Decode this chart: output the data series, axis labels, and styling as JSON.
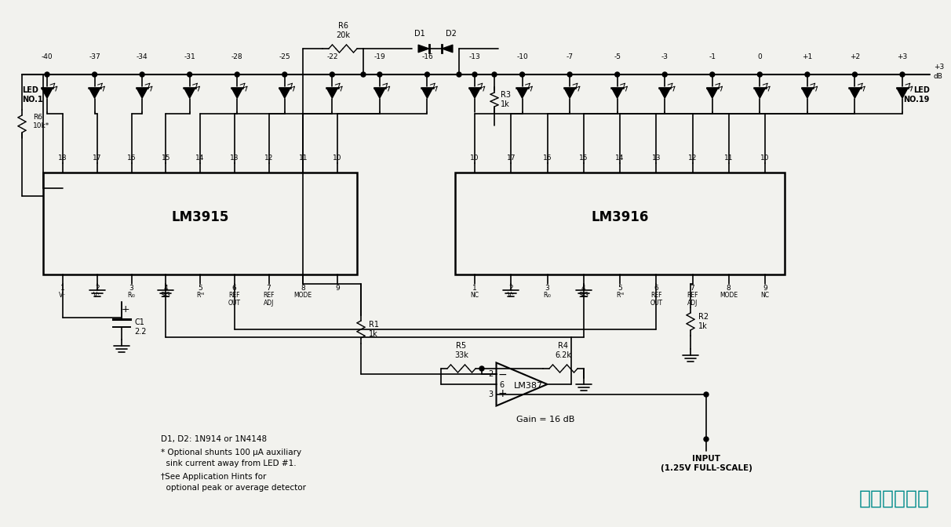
{
  "bg_color": "#f2f2ee",
  "watermark_text": "马上登录易航",
  "watermark_color": "#008B8B",
  "annotation1": "D1, D2: 1N914 or 1N4148",
  "annotation2": "* Optional shunts 100 μA auxiliary",
  "annotation3": "  sink current away from LED #1.",
  "annotation4": "†See Application Hints for",
  "annotation5": "  optional peak or average detector",
  "gain_text": "Gain = 16 dB",
  "input_text": "INPUT",
  "input_text2": "(1.25V FULL-SCALE)",
  "ic1_label": "LM3915",
  "ic2_label": "LM3916",
  "op_amp_label": "LM387",
  "led_labels": [
    "-40",
    "-37",
    "-34",
    "-31",
    "-28",
    "-25",
    "-22",
    "-19",
    "-16",
    "-13",
    "-10",
    "-7",
    "-5",
    "-3",
    "-1",
    "0",
    "+1",
    "+2",
    "+3"
  ],
  "db_label": "+3\ndB"
}
